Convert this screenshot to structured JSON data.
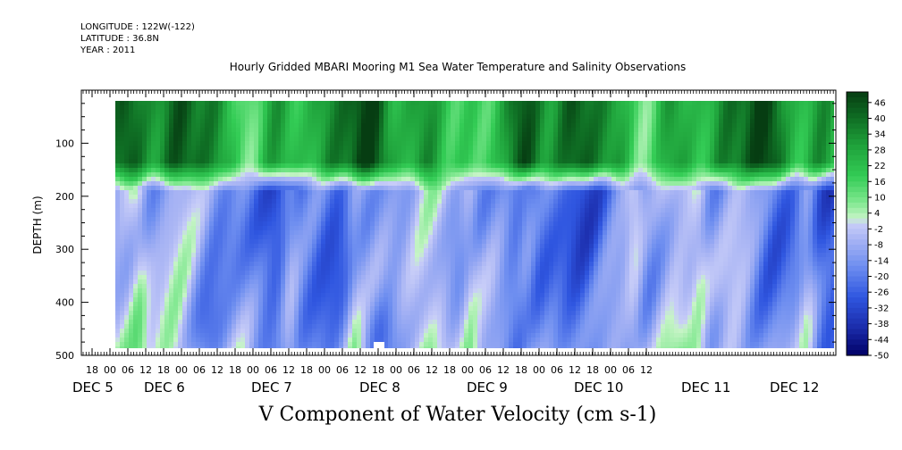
{
  "header": {
    "longitude": "LONGITUDE : 122W(-122)",
    "latitude": "LATITUDE : 36.8N",
    "year": "YEAR : 2011"
  },
  "chart_data": {
    "type": "heatmap",
    "title": "Hourly Gridded MBARI Mooring M1 Sea Water Temperature and Salinity Observations",
    "xlabel": "V Component of Water Velocity (cm s-1)",
    "ylabel": "DEPTH (m)",
    "y_range": [
      0,
      500
    ],
    "y_inverted": true,
    "y_ticks": [
      100,
      200,
      300,
      400,
      500
    ],
    "hour_ticks": [
      "18",
      "00",
      "06",
      "12",
      "18",
      "00",
      "06",
      "12",
      "18",
      "00",
      "06",
      "12",
      "18",
      "00",
      "06",
      "12",
      "18",
      "00",
      "06",
      "12",
      "18",
      "00",
      "06",
      "12",
      "18",
      "00",
      "06",
      "12",
      "18",
      "00",
      "06",
      "12"
    ],
    "date_labels": [
      "DEC  5",
      "DEC  6",
      "DEC  7",
      "DEC  8",
      "DEC  9",
      "DEC 10",
      "DEC 11",
      "DEC 12"
    ],
    "colorbar": {
      "min": -50,
      "max": 50,
      "labels": [
        "46",
        "40",
        "34",
        "28",
        "22",
        "16",
        "10",
        "4",
        "-2",
        "-8",
        "-14",
        "-20",
        "-26",
        "-32",
        "-38",
        "-44",
        "-50"
      ],
      "stops": [
        {
          "v": -50,
          "color": "#000066"
        },
        {
          "v": -40,
          "color": "#1a2aa8"
        },
        {
          "v": -28,
          "color": "#2f56e0"
        },
        {
          "v": -16,
          "color": "#6f8ff0"
        },
        {
          "v": -6,
          "color": "#a8b4f4"
        },
        {
          "v": 0,
          "color": "#c8cdf8"
        },
        {
          "v": 2,
          "color": "#c6f4c6"
        },
        {
          "v": 8,
          "color": "#80e890"
        },
        {
          "v": 18,
          "color": "#33cc55"
        },
        {
          "v": 30,
          "color": "#1ea03a"
        },
        {
          "v": 40,
          "color": "#0f6e24"
        },
        {
          "v": 50,
          "color": "#063d12"
        }
      ]
    }
  }
}
